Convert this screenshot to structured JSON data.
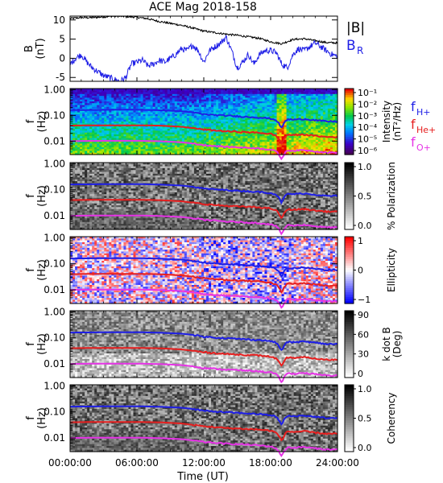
{
  "chart_data": {
    "title": "ACE Mag 2018-158",
    "x_axis": {
      "label": "Time (UT)",
      "range_hours": [
        0,
        24
      ],
      "ticks": [
        {
          "hour": 0,
          "label": "00:00:00"
        },
        {
          "hour": 6,
          "label": "06:00:00"
        },
        {
          "hour": 12,
          "label": "12:00:00"
        },
        {
          "hour": 18,
          "label": "18:00:00"
        },
        {
          "hour": 24,
          "label": "24:00:00"
        }
      ]
    },
    "colors": {
      "B_total": "#000000",
      "B_R": "#1e1ee6",
      "f_H": "#1e1ee6",
      "f_He": "#e61e1e",
      "f_O": "#e633e6"
    },
    "panels": [
      {
        "type": "line",
        "ylabel": "B",
        "yunit": "(nT)",
        "ylim": [
          -6,
          11
        ],
        "yticks": [
          {
            "value": 10,
            "label": "10"
          },
          {
            "value": 5,
            "label": "5"
          },
          {
            "value": 0,
            "label": "0"
          },
          {
            "value": -5,
            "label": "-5"
          }
        ],
        "legend": [
          {
            "main": "|B|",
            "sub": "",
            "color": "#000000"
          },
          {
            "main": "B",
            "sub": "R",
            "color": "#1e1ee6"
          }
        ],
        "series": [
          {
            "key": "B_total",
            "x": [
              0,
              1,
              2,
              3,
              4,
              5,
              6,
              7,
              8,
              9,
              10,
              11,
              12,
              13,
              14,
              15,
              16,
              17,
              18,
              19,
              20,
              21,
              22,
              23,
              24
            ],
            "y": [
              10.4,
              10.6,
              10.6,
              10.8,
              11.0,
              10.9,
              10.7,
              10.3,
              9.6,
              9.1,
              8.6,
              7.9,
              7.1,
              6.7,
              6.3,
              6.0,
              5.6,
              5.2,
              4.3,
              3.8,
              4.9,
              5.1,
              4.6,
              4.1,
              4.0
            ]
          },
          {
            "key": "B_R",
            "x": [
              0,
              0.5,
              1,
              1.5,
              2,
              2.5,
              3,
              3.5,
              4,
              4.5,
              5,
              5.5,
              6,
              6.5,
              7,
              7.5,
              8,
              8.5,
              9,
              9.5,
              10,
              10.5,
              11,
              11.5,
              12,
              12.5,
              13,
              13.5,
              14,
              14.5,
              15,
              15.5,
              16,
              16.5,
              17,
              17.5,
              18,
              18.5,
              19,
              19.5,
              20,
              20.5,
              21,
              21.5,
              22,
              22.5,
              23,
              23.5,
              24
            ],
            "y": [
              -1.5,
              0.0,
              1.0,
              -1.0,
              -2.5,
              -3.5,
              -4.5,
              -5.0,
              -5.5,
              -6.0,
              -5.0,
              -1.5,
              -1.0,
              -0.5,
              -2.0,
              -1.5,
              -0.5,
              -1.0,
              0.0,
              1.0,
              2.5,
              2.0,
              3.5,
              2.0,
              -1.0,
              2.0,
              3.0,
              4.0,
              5.5,
              2.0,
              -2.5,
              -1.0,
              1.0,
              -1.5,
              1.0,
              2.0,
              2.0,
              1.5,
              -1.5,
              -2.5,
              1.0,
              2.5,
              2.0,
              3.0,
              4.0,
              3.0,
              2.0,
              1.0,
              0.5
            ]
          }
        ]
      },
      {
        "type": "spectrogram",
        "ylabel": "f",
        "yunit": "(Hz)",
        "colormap": "rainbow",
        "colorbar_label": [
          "Intensity",
          "(nT²/Hz)"
        ],
        "colorbar_ticks": [
          "10⁻¹",
          "10⁻²",
          "10⁻³",
          "10⁻⁴",
          "10⁻⁵",
          "10⁻⁶"
        ],
        "legend": [
          {
            "main": "f",
            "sub": "H+",
            "color": "#1e1ee6"
          },
          {
            "main": "f",
            "sub": "He+",
            "color": "#e61e1e"
          },
          {
            "main": "f",
            "sub": "O+",
            "color": "#e633e6"
          }
        ]
      },
      {
        "type": "spectrogram",
        "ylabel": "f",
        "yunit": "(Hz)",
        "colormap": "gray",
        "colorbar_label": [
          "% Polarization"
        ],
        "colorbar_ticks": [
          "1.0",
          "0.5",
          "0.0"
        ]
      },
      {
        "type": "spectrogram",
        "ylabel": "f",
        "yunit": "(Hz)",
        "colormap": "bluewhitered",
        "colorbar_label": [
          "Ellipticity"
        ],
        "colorbar_ticks": [
          "1",
          "0",
          "−1"
        ]
      },
      {
        "type": "spectrogram",
        "ylabel": "f",
        "yunit": "(Hz)",
        "colormap": "gray",
        "colorbar_label": [
          "k dot B",
          "(Deg)"
        ],
        "colorbar_ticks": [
          "90",
          "60",
          "30",
          "0"
        ]
      },
      {
        "type": "spectrogram",
        "ylabel": "f",
        "yunit": "(Hz)",
        "colormap": "gray",
        "colorbar_label": [
          "Coherency"
        ],
        "colorbar_ticks": [
          "1.0",
          "0.5",
          "0.0"
        ]
      }
    ],
    "spectrogram_yaxis": {
      "scale": "log",
      "ylim": [
        0.003,
        1.1
      ],
      "yticks": [
        {
          "value": 1.0,
          "label": "1.00"
        },
        {
          "value": 0.1,
          "label": "0.10"
        },
        {
          "value": 0.01,
          "label": "0.01"
        }
      ]
    },
    "gyrofrequency_lines": {
      "x_hours": [
        0,
        2,
        4,
        6,
        8,
        10,
        11,
        12,
        13,
        14,
        15,
        16,
        17,
        18,
        18.5,
        19,
        19.2,
        19.5,
        20,
        21,
        22,
        23,
        24
      ],
      "f_H": [
        0.16,
        0.162,
        0.165,
        0.165,
        0.158,
        0.145,
        0.13,
        0.11,
        0.103,
        0.097,
        0.092,
        0.087,
        0.082,
        0.075,
        0.065,
        0.03,
        0.05,
        0.07,
        0.068,
        0.072,
        0.065,
        0.058,
        0.058
      ],
      "f_He": [
        0.04,
        0.041,
        0.041,
        0.041,
        0.04,
        0.036,
        0.032,
        0.028,
        0.026,
        0.024,
        0.023,
        0.022,
        0.021,
        0.019,
        0.016,
        0.0075,
        0.012,
        0.018,
        0.017,
        0.018,
        0.016,
        0.0145,
        0.0145
      ],
      "f_O": [
        0.01,
        0.0102,
        0.0103,
        0.0103,
        0.0099,
        0.009,
        0.0081,
        0.007,
        0.0065,
        0.006,
        0.0058,
        0.0055,
        0.0052,
        0.0047,
        0.004,
        0.0019,
        0.003,
        0.0044,
        0.0042,
        0.0045,
        0.004,
        0.0036,
        0.0036
      ]
    }
  }
}
